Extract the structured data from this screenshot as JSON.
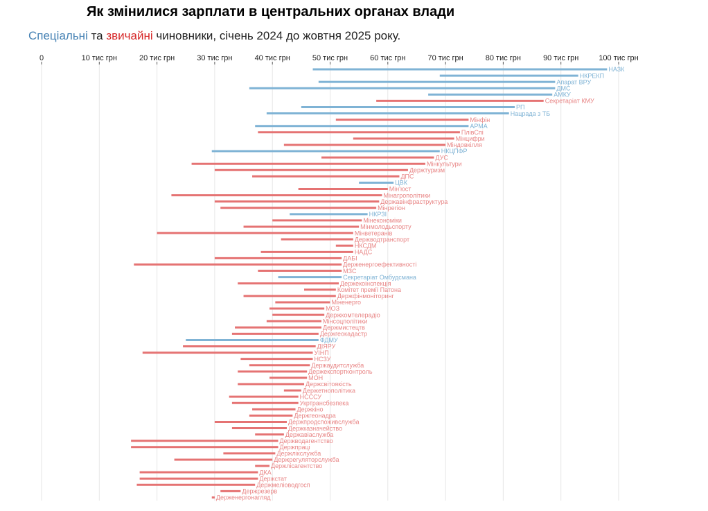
{
  "title": "Як змінилися зарплати в центральних органах влади",
  "subtitle": {
    "special": "Спеціальні",
    "and": " та ",
    "ordinary": "звичайні",
    "rest": " чиновники, січень 2024 до жовтня 2025 року."
  },
  "colors": {
    "special": "#7fb3d5",
    "ordinary": "#e57373",
    "special_text": "#7fb3d5",
    "ordinary_text": "#e88585",
    "grid": "#e6e6e6"
  },
  "chart_data": {
    "type": "bar",
    "subtype": "dumbbell-range",
    "xlim": [
      0,
      100
    ],
    "xticks": [
      0,
      10,
      20,
      30,
      40,
      50,
      60,
      70,
      80,
      90,
      100
    ],
    "xtick_labels": [
      "0",
      "10 тис грн",
      "20 тис грн",
      "30 тис грн",
      "40 тис грн",
      "50 тис грн",
      "60 тис грн",
      "70 тис грн",
      "80 тис грн",
      "90 тис грн",
      "100 тис грн"
    ],
    "grid": true,
    "series": [
      {
        "name": "Спеціальні",
        "key": "special"
      },
      {
        "name": "звичайні",
        "key": "ordinary"
      }
    ],
    "bars": [
      {
        "label": "НАЗК",
        "start": 47,
        "end": 98,
        "type": "special"
      },
      {
        "label": "НКРЕКП",
        "start": 69,
        "end": 93,
        "type": "special"
      },
      {
        "label": "Апарат ВРУ",
        "start": 48,
        "end": 89,
        "type": "special"
      },
      {
        "label": "ДМС",
        "start": 36,
        "end": 89,
        "type": "special"
      },
      {
        "label": "АМКУ",
        "start": 67,
        "end": 88.5,
        "type": "special"
      },
      {
        "label": "Секретаріат КМУ",
        "start": 58,
        "end": 87,
        "type": "ordinary"
      },
      {
        "label": "РП",
        "start": 45,
        "end": 82,
        "type": "special"
      },
      {
        "label": "Нацрада з ТБ",
        "start": 39,
        "end": 81,
        "type": "special"
      },
      {
        "label": "Мінфін",
        "start": 51,
        "end": 74,
        "type": "ordinary"
      },
      {
        "label": "АРМА",
        "start": 37,
        "end": 74,
        "type": "special"
      },
      {
        "label": "ПлівСпі",
        "start": 37.5,
        "end": 72.5,
        "type": "ordinary"
      },
      {
        "label": "Мінцифри",
        "start": 54,
        "end": 71.5,
        "type": "ordinary"
      },
      {
        "label": "Міндовкілля",
        "start": 42,
        "end": 70,
        "type": "ordinary"
      },
      {
        "label": "НКЦПФР",
        "start": 29.5,
        "end": 69,
        "type": "special"
      },
      {
        "label": "ДУС",
        "start": 48.5,
        "end": 68,
        "type": "ordinary"
      },
      {
        "label": "Мінкультури",
        "start": 26,
        "end": 66.5,
        "type": "ordinary"
      },
      {
        "label": "Держтуризм",
        "start": 30,
        "end": 63.5,
        "type": "ordinary"
      },
      {
        "label": "ДПС",
        "start": 36.5,
        "end": 62,
        "type": "ordinary"
      },
      {
        "label": "ЦВК",
        "start": 55,
        "end": 61,
        "type": "special"
      },
      {
        "label": "Мін'юст",
        "start": 44.5,
        "end": 60,
        "type": "ordinary"
      },
      {
        "label": "Мінагрополітики",
        "start": 22.5,
        "end": 59,
        "type": "ordinary"
      },
      {
        "label": "Державінфраструктура",
        "start": 30,
        "end": 58.5,
        "type": "ordinary"
      },
      {
        "label": "Мінрегіон",
        "start": 31,
        "end": 58,
        "type": "ordinary"
      },
      {
        "label": "НКРЗІ",
        "start": 43,
        "end": 56.5,
        "type": "special"
      },
      {
        "label": "Мінекономіки",
        "start": 40,
        "end": 55.5,
        "type": "ordinary"
      },
      {
        "label": "Мінмолодьспорту",
        "start": 35,
        "end": 55,
        "type": "ordinary"
      },
      {
        "label": "Мінветеранів",
        "start": 20,
        "end": 54,
        "type": "ordinary"
      },
      {
        "label": "Держводтранспорт",
        "start": 41.5,
        "end": 54,
        "type": "ordinary"
      },
      {
        "label": "НКСДМ",
        "start": 51,
        "end": 54,
        "type": "ordinary"
      },
      {
        "label": "НАДС",
        "start": 38,
        "end": 54,
        "type": "ordinary"
      },
      {
        "label": "ДАБІ",
        "start": 30,
        "end": 52,
        "type": "ordinary"
      },
      {
        "label": "Держенергоефективності",
        "start": 16,
        "end": 52,
        "type": "ordinary"
      },
      {
        "label": "МЗС",
        "start": 37.5,
        "end": 52,
        "type": "ordinary"
      },
      {
        "label": "Секретаріат Омбудсмана",
        "start": 41,
        "end": 52,
        "type": "special"
      },
      {
        "label": "Держекоінспекція",
        "start": 34,
        "end": 51.5,
        "type": "ordinary"
      },
      {
        "label": "Комітет премії Патона",
        "start": 45.5,
        "end": 51,
        "type": "ordinary"
      },
      {
        "label": "Держфінмоніторинг",
        "start": 35,
        "end": 51,
        "type": "ordinary"
      },
      {
        "label": "Міненерго",
        "start": 40.5,
        "end": 50,
        "type": "ordinary"
      },
      {
        "label": "МОЗ",
        "start": 39.5,
        "end": 49,
        "type": "ordinary"
      },
      {
        "label": "Держкомтелерадіо",
        "start": 40,
        "end": 49,
        "type": "ordinary"
      },
      {
        "label": "Мінсоцполітики",
        "start": 39,
        "end": 48.5,
        "type": "ordinary"
      },
      {
        "label": "Держмистецтв",
        "start": 33.5,
        "end": 48.5,
        "type": "ordinary"
      },
      {
        "label": "Держгеокадастр",
        "start": 33,
        "end": 48,
        "type": "ordinary"
      },
      {
        "label": "ФДМУ",
        "start": 25,
        "end": 48,
        "type": "special"
      },
      {
        "label": "ДІЯРУ",
        "start": 24.5,
        "end": 47.5,
        "type": "ordinary"
      },
      {
        "label": "УІНП",
        "start": 17.5,
        "end": 47,
        "type": "ordinary"
      },
      {
        "label": "НСЗУ",
        "start": 34.5,
        "end": 47,
        "type": "ordinary"
      },
      {
        "label": "Держаудитслужба",
        "start": 36,
        "end": 46.5,
        "type": "ordinary"
      },
      {
        "label": "Держекспортконтроль",
        "start": 34,
        "end": 46,
        "type": "ordinary"
      },
      {
        "label": "МОН",
        "start": 39.5,
        "end": 46,
        "type": "ordinary"
      },
      {
        "label": "Держсвітоякість",
        "start": 34,
        "end": 45.5,
        "type": "ordinary"
      },
      {
        "label": "Держетнополітика",
        "start": 42,
        "end": 45,
        "type": "ordinary"
      },
      {
        "label": "НСССУ",
        "start": 32.5,
        "end": 44.5,
        "type": "ordinary"
      },
      {
        "label": "Укртрансбезпека",
        "start": 33,
        "end": 44.5,
        "type": "ordinary"
      },
      {
        "label": "Держкіно",
        "start": 36.5,
        "end": 44,
        "type": "ordinary"
      },
      {
        "label": "Держгеонадра",
        "start": 36,
        "end": 43.5,
        "type": "ordinary"
      },
      {
        "label": "Держпродспоживслужба",
        "start": 30,
        "end": 42.5,
        "type": "ordinary"
      },
      {
        "label": "Держказначейство",
        "start": 33,
        "end": 42.5,
        "type": "ordinary"
      },
      {
        "label": "Державіаслужба",
        "start": 37,
        "end": 42,
        "type": "ordinary"
      },
      {
        "label": "Держводагентство",
        "start": 15.5,
        "end": 41,
        "type": "ordinary"
      },
      {
        "label": "Держпраці",
        "start": 15.5,
        "end": 41,
        "type": "ordinary"
      },
      {
        "label": "Держлікслужба",
        "start": 31.5,
        "end": 40.5,
        "type": "ordinary"
      },
      {
        "label": "Держрегуляторслужба",
        "start": 23,
        "end": 40,
        "type": "ordinary"
      },
      {
        "label": "Держлісагентство",
        "start": 37,
        "end": 39.5,
        "type": "ordinary"
      },
      {
        "label": "ДКА",
        "start": 17,
        "end": 37.5,
        "type": "ordinary"
      },
      {
        "label": "Держстат",
        "start": 17,
        "end": 37.5,
        "type": "ordinary"
      },
      {
        "label": "Держмеліоводгосп",
        "start": 16.5,
        "end": 37,
        "type": "ordinary"
      },
      {
        "label": "Держрезерв",
        "start": 31,
        "end": 34.5,
        "type": "ordinary"
      },
      {
        "label": "Держенергонагляд",
        "start": 29.5,
        "end": 30,
        "type": "ordinary"
      }
    ]
  }
}
